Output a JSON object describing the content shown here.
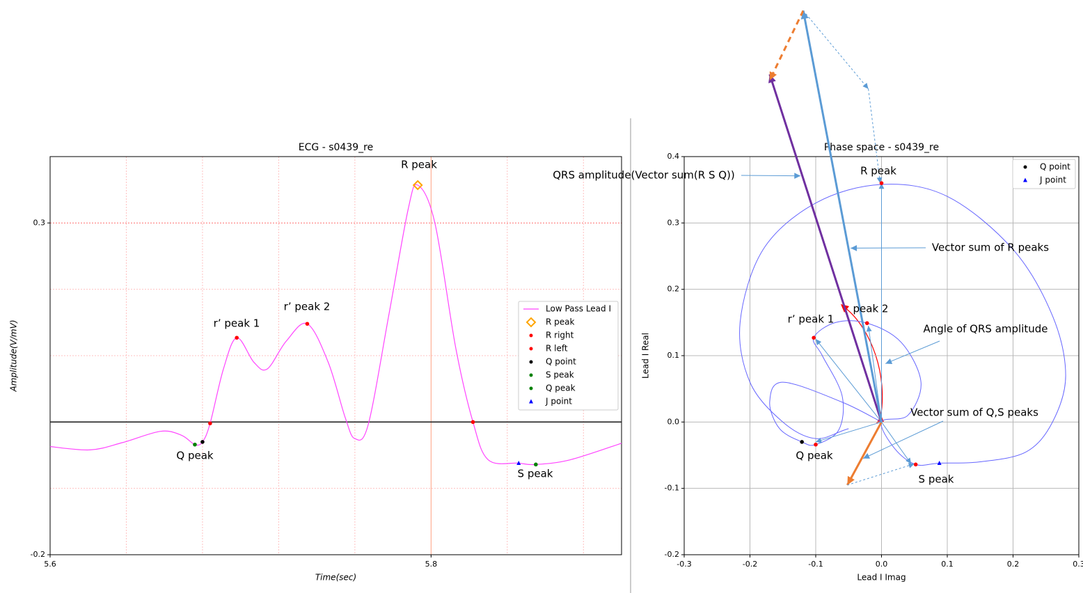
{
  "chart_data": [
    {
      "type": "line",
      "title": "ECG - s0439_re",
      "xlabel": "Time(sec)",
      "ylabel": "Amplitude(V/mV)",
      "xlim": [
        5.6,
        5.9
      ],
      "ylim": [
        -0.2,
        0.4
      ],
      "xticks": [
        5.6,
        5.8
      ],
      "yticks": [
        -0.2,
        0.3
      ],
      "xminorticks": [
        5.64,
        5.68,
        5.72,
        5.76,
        5.84,
        5.88
      ],
      "yminorticks": [
        -0.1,
        0,
        0.1,
        0.2
      ],
      "grid": true,
      "hline": 0,
      "legend": "right",
      "series": [
        {
          "name": "Low Pass Lead I",
          "color": "#ff44ff",
          "kind": "line",
          "x": [
            5.6,
            5.621,
            5.638,
            5.658,
            5.669,
            5.676,
            5.68,
            5.684,
            5.691,
            5.698,
            5.707,
            5.714,
            5.724,
            5.735,
            5.746,
            5.755,
            5.76,
            5.767,
            5.778,
            5.788,
            5.793,
            5.802,
            5.813,
            5.822,
            5.83,
            5.846,
            5.855,
            5.873,
            5.9
          ],
          "values": [
            -0.037,
            -0.042,
            -0.031,
            -0.014,
            -0.02,
            -0.034,
            -0.03,
            -0.002,
            0.08,
            0.127,
            0.09,
            0.08,
            0.122,
            0.148,
            0.09,
            0.006,
            -0.025,
            -0.004,
            0.164,
            0.321,
            0.357,
            0.3,
            0.111,
            0,
            -0.057,
            -0.062,
            -0.064,
            -0.057,
            -0.032
          ]
        },
        {
          "name": "R peak",
          "color": "#ffa500",
          "kind": "diamond",
          "x": [
            5.793
          ],
          "values": [
            0.357
          ]
        },
        {
          "name": "R right",
          "color": "#ff0000",
          "kind": "dot",
          "x": [
            5.822
          ],
          "values": [
            0
          ]
        },
        {
          "name": "R left",
          "color": "#ff0000",
          "kind": "dot",
          "x": [
            5.684,
            5.698,
            5.735
          ],
          "values": [
            -0.002,
            0.127,
            0.148
          ]
        },
        {
          "name": "Q point",
          "color": "#000000",
          "kind": "dot",
          "x": [
            5.68
          ],
          "values": [
            -0.03
          ]
        },
        {
          "name": "S peak",
          "color": "#008000",
          "kind": "dot",
          "x": [
            5.855
          ],
          "values": [
            -0.064
          ]
        },
        {
          "name": "Q peak",
          "color": "#008000",
          "kind": "dot",
          "x": [
            5.676
          ],
          "values": [
            -0.034
          ]
        },
        {
          "name": "J point",
          "color": "#0000ff",
          "kind": "triangle",
          "x": [
            5.846
          ],
          "values": [
            -0.062
          ]
        }
      ],
      "annotations": [
        {
          "text": "R peak"
        },
        {
          "text": "r’ peak 1"
        },
        {
          "text": "r’ peak 2"
        },
        {
          "text": "Q peak"
        },
        {
          "text": "S peak"
        }
      ]
    },
    {
      "type": "phase",
      "title": "Phase space - s0439_re",
      "xlabel": "Lead I Imag",
      "ylabel": "Lead I Real",
      "xlim": [
        -0.3,
        0.3
      ],
      "ylim": [
        -0.2,
        0.4
      ],
      "xticks": [
        -0.3,
        -0.2,
        -0.1,
        {
          "value": 0,
          "label": "0.0"
        },
        0.1,
        0.2,
        0.3
      ],
      "yticks": [
        -0.2,
        -0.1,
        {
          "value": 0,
          "label": "0.0"
        },
        0.1,
        0.2,
        0.3,
        0.4
      ],
      "grid": true,
      "legend": "upper right",
      "trajectory": {
        "color": "#6666ff",
        "x": [
          0,
          -0.06,
          -0.15,
          -0.17,
          -0.155,
          -0.121,
          -0.1,
          -0.065,
          -0.06,
          -0.09,
          -0.103,
          -0.07,
          -0.022,
          0.03,
          0.06,
          0.04,
          0,
          0.02,
          0.052,
          0.088,
          0.15,
          0.22,
          0.26,
          0.28,
          0.26,
          0.2,
          0.1,
          0,
          -0.1,
          -0.18,
          -0.215,
          -0.2,
          -0.15,
          -0.1,
          -0.05
        ],
        "values": [
          0,
          0.03,
          0.06,
          0.03,
          -0.01,
          -0.03,
          -0.034,
          -0.012,
          0.04,
          0.1,
          0.127,
          0.15,
          0.149,
          0.12,
          0.06,
          0.01,
          0,
          -0.04,
          -0.064,
          -0.062,
          -0.06,
          -0.045,
          0,
          0.07,
          0.16,
          0.26,
          0.34,
          0.358,
          0.33,
          0.26,
          0.15,
          0.06,
          0,
          -0.025,
          -0.01
        ]
      },
      "peaks": {
        "color": "#ff0000",
        "x": [
          0,
          -0.103,
          -0.022,
          -0.1,
          0.052
        ],
        "values": [
          0.36,
          0.127,
          0.149,
          -0.034,
          -0.064
        ]
      },
      "series": [
        {
          "name": "Q point",
          "color": "#000000",
          "kind": "dot",
          "x": [
            -0.121
          ],
          "values": [
            -0.03
          ]
        },
        {
          "name": "J point",
          "color": "#0000ff",
          "kind": "triangle",
          "x": [
            0.088
          ],
          "values": [
            -0.062
          ]
        }
      ],
      "vectors": [
        {
          "color": "#7030a0",
          "width": 3,
          "dash": "none",
          "x": [
            0,
            -0.17
          ],
          "values": [
            0,
            0.524
          ]
        },
        {
          "color": "#5b9bd5",
          "width": 3,
          "dash": "none",
          "x": [
            0,
            -0.119
          ],
          "values": [
            0,
            0.62
          ]
        },
        {
          "color": "#ed7d31",
          "width": 3,
          "dash": "none",
          "x": [
            0,
            -0.052
          ],
          "values": [
            0,
            -0.095
          ]
        },
        {
          "color": "#ed7d31",
          "width": 3,
          "dash": "8,6",
          "x": [
            -0.119,
            -0.17
          ],
          "values": [
            0.62,
            0.515
          ]
        },
        {
          "color": "#5b9bd5",
          "width": 1,
          "dash": "3,3",
          "x": [
            -0.119,
            -0.02
          ],
          "values": [
            0.62,
            0.502
          ]
        },
        {
          "color": "#5b9bd5",
          "width": 1,
          "dash": "3,3",
          "x": [
            -0.02,
            -0.002
          ],
          "values": [
            0.502,
            0.36
          ]
        },
        {
          "color": "#5b9bd5",
          "width": 1,
          "dash": "none",
          "x": [
            0,
            0
          ],
          "values": [
            0,
            0.36
          ]
        },
        {
          "color": "#5b9bd5",
          "width": 1,
          "dash": "none",
          "x": [
            0,
            -0.1
          ],
          "values": [
            0,
            0.125
          ]
        },
        {
          "color": "#5b9bd5",
          "width": 1,
          "dash": "none",
          "x": [
            0,
            -0.02
          ],
          "values": [
            0,
            0.145
          ]
        },
        {
          "color": "#5b9bd5",
          "width": 1,
          "dash": "none",
          "x": [
            0,
            -0.1
          ],
          "values": [
            0,
            -0.03
          ]
        },
        {
          "color": "#5b9bd5",
          "width": 1,
          "dash": "none",
          "x": [
            0,
            0.045
          ],
          "values": [
            0,
            -0.063
          ]
        },
        {
          "color": "#5b9bd5",
          "width": 1,
          "dash": "3,3",
          "x": [
            -0.052,
            0.05
          ],
          "values": [
            -0.095,
            -0.063
          ]
        }
      ],
      "annotations": [
        {
          "text": "R peak"
        },
        {
          "text": "QRS amplitude(Vector sum(R S Q))",
          "x": -0.123,
          "y": 0.371
        },
        {
          "text": "Vector sum of R peaks",
          "x": -0.047,
          "y": 0.262
        },
        {
          "text": "r’ peak 1"
        },
        {
          "text": "peak 2"
        },
        {
          "text": "Angle of QRS amplitude",
          "x": 0.006,
          "y": 0.088
        },
        {
          "text": "Vector sum of Q,S peaks",
          "x": -0.028,
          "y": -0.055
        },
        {
          "text": "Q peak"
        },
        {
          "text": "S peak"
        }
      ]
    }
  ]
}
